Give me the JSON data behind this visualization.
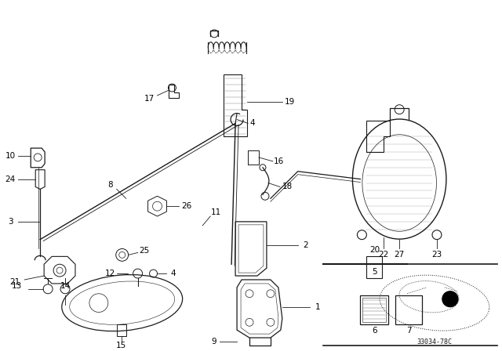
{
  "background_color": "#ffffff",
  "diagram_code": "33034-78C",
  "fig_width": 6.4,
  "fig_height": 4.48,
  "dpi": 100,
  "line_color": "#1a1a1a",
  "label_color": "#000000"
}
